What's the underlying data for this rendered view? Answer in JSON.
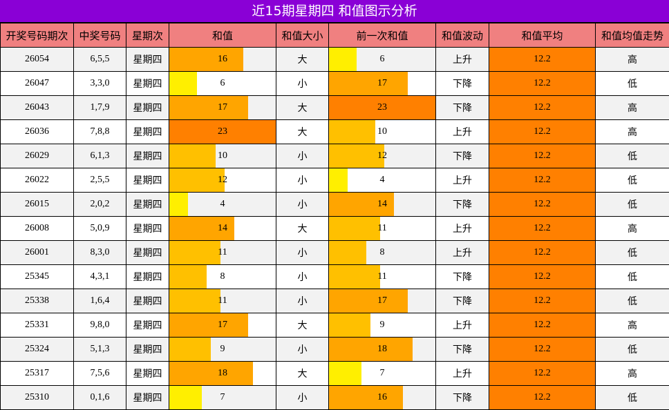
{
  "title": "近15期星期四 和值图示分析",
  "headers": [
    "开奖号码期次",
    "中奖号码",
    "星期次",
    "和值",
    "和值大小",
    "前一次和值",
    "和值波动",
    "和值平均",
    "和值均值走势"
  ],
  "bar_max": 23,
  "colors": {
    "title_bg": "#8a00d6",
    "header_bg": "#f08080",
    "avg_bg": "#ff8000",
    "bar_low": "#ffef00",
    "bar_mid": "#ffc000",
    "bar_high": "#ffa500",
    "bar_top": "#ff8000"
  },
  "rows": [
    {
      "period": "26054",
      "numbers": "6,5,5",
      "weekday": "星期四",
      "sum": "16",
      "size": "大",
      "prev_sum": "6",
      "trend": "上升",
      "avg": "12.2",
      "avg_trend": "高"
    },
    {
      "period": "26047",
      "numbers": "3,3,0",
      "weekday": "星期四",
      "sum": "6",
      "size": "小",
      "prev_sum": "17",
      "trend": "下降",
      "avg": "12.2",
      "avg_trend": "低"
    },
    {
      "period": "26043",
      "numbers": "1,7,9",
      "weekday": "星期四",
      "sum": "17",
      "size": "大",
      "prev_sum": "23",
      "trend": "下降",
      "avg": "12.2",
      "avg_trend": "高"
    },
    {
      "period": "26036",
      "numbers": "7,8,8",
      "weekday": "星期四",
      "sum": "23",
      "size": "大",
      "prev_sum": "10",
      "trend": "上升",
      "avg": "12.2",
      "avg_trend": "高"
    },
    {
      "period": "26029",
      "numbers": "6,1,3",
      "weekday": "星期四",
      "sum": "10",
      "size": "小",
      "prev_sum": "12",
      "trend": "下降",
      "avg": "12.2",
      "avg_trend": "低"
    },
    {
      "period": "26022",
      "numbers": "2,5,5",
      "weekday": "星期四",
      "sum": "12",
      "size": "小",
      "prev_sum": "4",
      "trend": "上升",
      "avg": "12.2",
      "avg_trend": "低"
    },
    {
      "period": "26015",
      "numbers": "2,0,2",
      "weekday": "星期四",
      "sum": "4",
      "size": "小",
      "prev_sum": "14",
      "trend": "下降",
      "avg": "12.2",
      "avg_trend": "低"
    },
    {
      "period": "26008",
      "numbers": "5,0,9",
      "weekday": "星期四",
      "sum": "14",
      "size": "大",
      "prev_sum": "11",
      "trend": "上升",
      "avg": "12.2",
      "avg_trend": "高"
    },
    {
      "period": "26001",
      "numbers": "8,3,0",
      "weekday": "星期四",
      "sum": "11",
      "size": "小",
      "prev_sum": "8",
      "trend": "上升",
      "avg": "12.2",
      "avg_trend": "低"
    },
    {
      "period": "25345",
      "numbers": "4,3,1",
      "weekday": "星期四",
      "sum": "8",
      "size": "小",
      "prev_sum": "11",
      "trend": "下降",
      "avg": "12.2",
      "avg_trend": "低"
    },
    {
      "period": "25338",
      "numbers": "1,6,4",
      "weekday": "星期四",
      "sum": "11",
      "size": "小",
      "prev_sum": "17",
      "trend": "下降",
      "avg": "12.2",
      "avg_trend": "低"
    },
    {
      "period": "25331",
      "numbers": "9,8,0",
      "weekday": "星期四",
      "sum": "17",
      "size": "大",
      "prev_sum": "9",
      "trend": "上升",
      "avg": "12.2",
      "avg_trend": "高"
    },
    {
      "period": "25324",
      "numbers": "5,1,3",
      "weekday": "星期四",
      "sum": "9",
      "size": "小",
      "prev_sum": "18",
      "trend": "下降",
      "avg": "12.2",
      "avg_trend": "低"
    },
    {
      "period": "25317",
      "numbers": "7,5,6",
      "weekday": "星期四",
      "sum": "18",
      "size": "大",
      "prev_sum": "7",
      "trend": "上升",
      "avg": "12.2",
      "avg_trend": "高"
    },
    {
      "period": "25310",
      "numbers": "0,1,6",
      "weekday": "星期四",
      "sum": "7",
      "size": "小",
      "prev_sum": "16",
      "trend": "下降",
      "avg": "12.2",
      "avg_trend": "低"
    }
  ]
}
